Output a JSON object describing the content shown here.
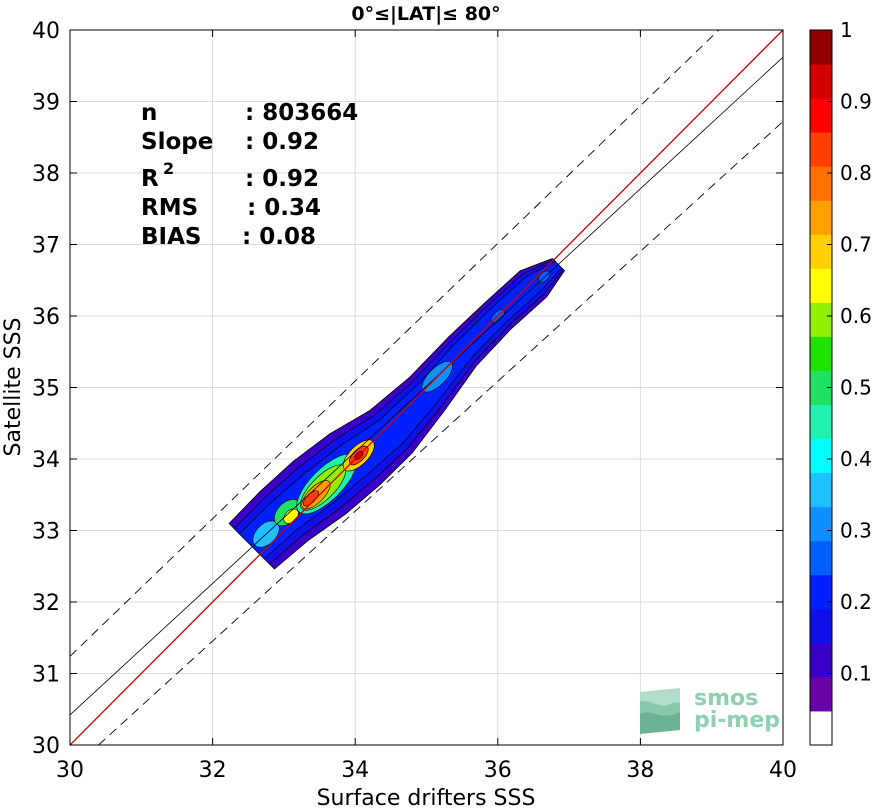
{
  "chart_data": {
    "type": "heatmap",
    "title": "0°≤|LAT|≤ 80°",
    "xlabel": "Surface drifters SSS",
    "ylabel": "Satellite SSS",
    "xlim": [
      30,
      40
    ],
    "ylim": [
      30,
      40
    ],
    "xticks": [
      "30",
      "32",
      "34",
      "36",
      "38",
      "40"
    ],
    "yticks": [
      "30",
      "31",
      "32",
      "33",
      "34",
      "35",
      "36",
      "37",
      "38",
      "39",
      "40"
    ],
    "grid": true,
    "stats": {
      "n_label": "n",
      "n_value": ": 803664",
      "slope_label": "Slope",
      "slope_value": ": 0.92",
      "r2_label": "R",
      "r2_sup": "2",
      "r2_value": ": 0.92",
      "rms_label": "RMS",
      "rms_value": ": 0.34",
      "bias_label": "BIAS",
      "bias_value": ": 0.08"
    },
    "lines": {
      "identity": {
        "from": [
          30,
          30
        ],
        "to": [
          40,
          40
        ],
        "color": "#cc0000"
      },
      "regression": {
        "from": [
          30,
          30.42
        ],
        "to": [
          40,
          39.62
        ],
        "color": "#000000"
      },
      "upper_bound": {
        "from": [
          30,
          31.24
        ],
        "to": [
          39.1,
          40
        ],
        "color": "#000000",
        "style": "dashed"
      },
      "lower_bound": {
        "from": [
          30.4,
          30
        ],
        "to": [
          40,
          38.72
        ],
        "color": "#000000",
        "style": "dashed"
      }
    },
    "density_ridge": [
      {
        "x": 32.55,
        "y": 32.78,
        "w": 0.45
      },
      {
        "x": 33.0,
        "y": 33.2,
        "w": 0.48
      },
      {
        "x": 33.5,
        "y": 33.6,
        "w": 0.52
      },
      {
        "x": 34.0,
        "y": 34.0,
        "w": 0.5
      },
      {
        "x": 34.5,
        "y": 34.38,
        "w": 0.42
      },
      {
        "x": 35.0,
        "y": 34.9,
        "w": 0.34
      },
      {
        "x": 35.5,
        "y": 35.5,
        "w": 0.28
      },
      {
        "x": 36.0,
        "y": 36.0,
        "w": 0.26
      },
      {
        "x": 36.5,
        "y": 36.45,
        "w": 0.26
      },
      {
        "x": 36.85,
        "y": 36.72,
        "w": 0.12
      }
    ],
    "hotspots": [
      {
        "x": 32.75,
        "y": 32.95,
        "rx": 0.22,
        "ry": 0.14,
        "level": 0.35
      },
      {
        "x": 33.05,
        "y": 33.25,
        "rx": 0.22,
        "ry": 0.14,
        "level": 0.5
      },
      {
        "x": 33.1,
        "y": 33.2,
        "rx": 0.12,
        "ry": 0.08,
        "level": 0.65
      },
      {
        "x": 33.6,
        "y": 33.65,
        "rx": 0.55,
        "ry": 0.22,
        "level": 0.45
      },
      {
        "x": 33.55,
        "y": 33.6,
        "rx": 0.42,
        "ry": 0.16,
        "level": 0.6
      },
      {
        "x": 33.45,
        "y": 33.5,
        "rx": 0.26,
        "ry": 0.11,
        "level": 0.75
      },
      {
        "x": 33.38,
        "y": 33.45,
        "rx": 0.14,
        "ry": 0.06,
        "level": 0.85
      },
      {
        "x": 34.05,
        "y": 34.05,
        "rx": 0.28,
        "ry": 0.13,
        "level": 0.7
      },
      {
        "x": 34.05,
        "y": 34.05,
        "rx": 0.17,
        "ry": 0.08,
        "level": 0.85
      },
      {
        "x": 34.05,
        "y": 34.05,
        "rx": 0.07,
        "ry": 0.04,
        "level": 0.95
      },
      {
        "x": 35.15,
        "y": 35.15,
        "rx": 0.28,
        "ry": 0.12,
        "level": 0.3
      },
      {
        "x": 36.0,
        "y": 36.0,
        "rx": 0.12,
        "ry": 0.06,
        "level": 0.25
      },
      {
        "x": 36.65,
        "y": 36.55,
        "rx": 0.1,
        "ry": 0.06,
        "level": 0.25
      }
    ],
    "colorbar": {
      "min": 0,
      "max": 1,
      "ticks": [
        "0.1",
        "0.2",
        "0.3",
        "0.4",
        "0.5",
        "0.6",
        "0.7",
        "0.8",
        "0.9",
        "1"
      ],
      "colors": [
        "#ffffff",
        "#6a00a8",
        "#3a00c8",
        "#1010e8",
        "#0020ff",
        "#0060ff",
        "#1090ff",
        "#20c0ff",
        "#00ffff",
        "#20f0b0",
        "#20e060",
        "#20e000",
        "#90f000",
        "#ffff00",
        "#ffd000",
        "#ffa000",
        "#ff7000",
        "#ff4000",
        "#ff0000",
        "#d40000",
        "#900000"
      ]
    }
  },
  "watermark": {
    "line1": "smos",
    "line2": "pi-mep"
  }
}
